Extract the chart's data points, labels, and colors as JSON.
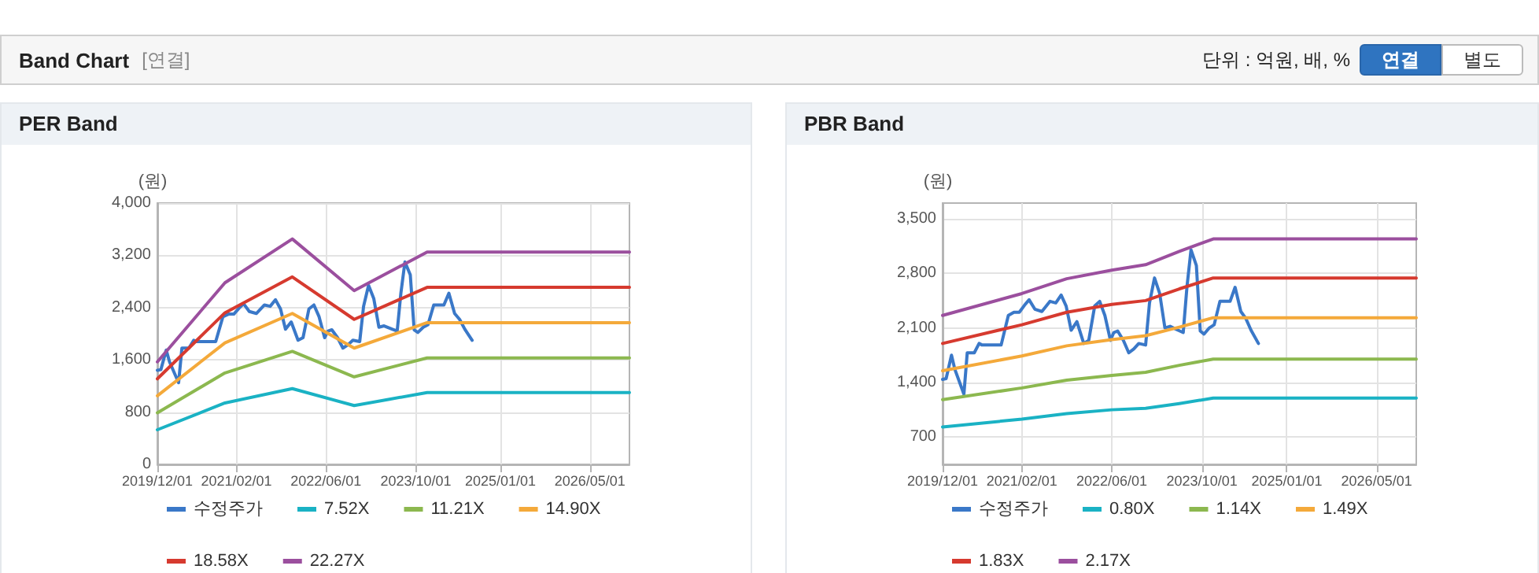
{
  "chart_data": [
    {
      "type": "other",
      "title": "Band Chart",
      "annotations": [
        "[연결]",
        "단위 : 억원, 배, %",
        "연결",
        "별도"
      ]
    },
    {
      "type": "line",
      "title": "PER Band",
      "ylabel": "(원)",
      "xlim": [
        "2019-12-01",
        "2026-12-01"
      ],
      "xticks": [
        {
          "value": "2019-12-01",
          "label": "2019/12/01"
        },
        {
          "value": "2021-02-01",
          "label": "2021/02/01"
        },
        {
          "value": "2022-06-01",
          "label": "2022/06/01"
        },
        {
          "value": "2023-10-01",
          "label": "2023/10/01"
        },
        {
          "value": "2025-01-01",
          "label": "2025/01/01"
        },
        {
          "value": "2026-05-01",
          "label": "2026/05/01"
        }
      ],
      "ylim": [
        0,
        4000
      ],
      "yticks": [
        0,
        {
          "value": 800,
          "label": "800"
        },
        {
          "value": 1600,
          "label": "1,600"
        },
        {
          "value": 2400,
          "label": "2,400"
        },
        {
          "value": 3200,
          "label": "3,200"
        },
        {
          "value": 4000,
          "label": "4,000"
        }
      ],
      "grid": true,
      "legend": "bottom",
      "marker": "none",
      "line_style": "solid",
      "series": [
        {
          "name": "수정주가",
          "color": "#3a78c8",
          "x": [
            "2019-12-01",
            "2019-12-20",
            "2020-01-18",
            "2020-02-05",
            "2020-03-25",
            "2020-04-12",
            "2020-05-20",
            "2020-06-15",
            "2020-07-01",
            "2020-10-12",
            "2020-11-20",
            "2020-12-20",
            "2021-01-18",
            "2021-02-15",
            "2021-03-12",
            "2021-04-12",
            "2021-05-20",
            "2021-07-03",
            "2021-08-03",
            "2021-09-01",
            "2021-09-28",
            "2021-10-25",
            "2021-11-25",
            "2022-01-01",
            "2022-01-28",
            "2022-03-01",
            "2022-03-28",
            "2022-04-25",
            "2022-05-25",
            "2022-06-12",
            "2022-07-03",
            "2022-08-03",
            "2022-09-01",
            "2022-09-28",
            "2022-10-25",
            "2022-12-01",
            "2022-12-22",
            "2023-01-18",
            "2023-02-15",
            "2023-03-15",
            "2023-04-12",
            "2023-05-25",
            "2023-06-22",
            "2023-07-12",
            "2023-08-03",
            "2023-09-01",
            "2023-09-22",
            "2023-10-12",
            "2023-11-10",
            "2023-12-06",
            "2024-01-06",
            "2024-03-01",
            "2024-03-28",
            "2024-04-28",
            "2024-05-25",
            "2024-06-22",
            "2024-08-01"
          ],
          "values": [
            1440,
            1450,
            1750,
            1570,
            1250,
            1780,
            1780,
            1900,
            1880,
            1880,
            2260,
            2300,
            2300,
            2390,
            2460,
            2340,
            2310,
            2440,
            2420,
            2520,
            2380,
            2070,
            2180,
            1900,
            1940,
            2380,
            2440,
            2260,
            1940,
            2040,
            2060,
            1940,
            1780,
            1830,
            1900,
            1880,
            2420,
            2740,
            2540,
            2100,
            2120,
            2070,
            2040,
            2620,
            3100,
            2900,
            2060,
            2020,
            2100,
            2140,
            2440,
            2440,
            2620,
            2310,
            2220,
            2070,
            1900
          ]
        },
        {
          "name": "7.52X",
          "color": "#1ab2c4",
          "x": [
            "2019-12-01",
            "2020-12-01",
            "2021-12-01",
            "2022-11-01",
            "2023-12-01",
            "2026-12-01"
          ],
          "values": [
            530,
            940,
            1160,
            900,
            1100,
            1100
          ]
        },
        {
          "name": "11.21X",
          "color": "#8cb84f",
          "x": [
            "2019-12-01",
            "2020-12-01",
            "2021-12-01",
            "2022-11-01",
            "2023-12-01",
            "2026-12-01"
          ],
          "values": [
            790,
            1400,
            1730,
            1340,
            1630,
            1630
          ]
        },
        {
          "name": "14.90X",
          "color": "#f4a93a",
          "x": [
            "2019-12-01",
            "2020-12-01",
            "2021-12-01",
            "2022-11-01",
            "2023-12-01",
            "2026-12-01"
          ],
          "values": [
            1050,
            1860,
            2310,
            1780,
            2170,
            2170
          ]
        },
        {
          "name": "18.58X",
          "color": "#d63a2f",
          "x": [
            "2019-12-01",
            "2020-12-01",
            "2021-12-01",
            "2022-11-01",
            "2023-12-01",
            "2026-12-01"
          ],
          "values": [
            1310,
            2320,
            2870,
            2220,
            2710,
            2710
          ]
        },
        {
          "name": "22.27X",
          "color": "#9b4f9e",
          "x": [
            "2019-12-01",
            "2020-12-01",
            "2021-12-01",
            "2022-11-01",
            "2023-12-01",
            "2026-12-01"
          ],
          "values": [
            1570,
            2780,
            3450,
            2660,
            3250,
            3250
          ]
        }
      ]
    },
    {
      "type": "line",
      "title": "PBR Band",
      "ylabel": "(원)",
      "xlim": [
        "2019-12-01",
        "2026-12-01"
      ],
      "xticks": [
        {
          "value": "2019-12-01",
          "label": "2019/12/01"
        },
        {
          "value": "2021-02-01",
          "label": "2021/02/01"
        },
        {
          "value": "2022-06-01",
          "label": "2022/06/01"
        },
        {
          "value": "2023-10-01",
          "label": "2023/10/01"
        },
        {
          "value": "2025-01-01",
          "label": "2025/01/01"
        },
        {
          "value": "2026-05-01",
          "label": "2026/05/01"
        }
      ],
      "ylim": [
        350,
        3700
      ],
      "yticks": [
        {
          "value": 700,
          "label": "700"
        },
        {
          "value": 1400,
          "label": "1,400"
        },
        {
          "value": 2100,
          "label": "2,100"
        },
        {
          "value": 2800,
          "label": "2,800"
        },
        {
          "value": 3500,
          "label": "3,500"
        }
      ],
      "grid": true,
      "legend": "bottom",
      "marker": "none",
      "line_style": "solid",
      "series": [
        {
          "name": "수정주가",
          "color": "#3a78c8",
          "x": [
            "2019-12-01",
            "2019-12-20",
            "2020-01-18",
            "2020-02-05",
            "2020-03-25",
            "2020-04-12",
            "2020-05-20",
            "2020-06-15",
            "2020-07-01",
            "2020-10-12",
            "2020-11-20",
            "2020-12-20",
            "2021-01-18",
            "2021-02-15",
            "2021-03-12",
            "2021-04-12",
            "2021-05-20",
            "2021-07-03",
            "2021-08-03",
            "2021-09-01",
            "2021-09-28",
            "2021-10-25",
            "2021-11-25",
            "2022-01-01",
            "2022-01-28",
            "2022-03-01",
            "2022-03-28",
            "2022-04-25",
            "2022-05-25",
            "2022-06-12",
            "2022-07-03",
            "2022-08-03",
            "2022-09-01",
            "2022-09-28",
            "2022-10-25",
            "2022-12-01",
            "2022-12-22",
            "2023-01-18",
            "2023-02-15",
            "2023-03-15",
            "2023-04-12",
            "2023-05-25",
            "2023-06-22",
            "2023-07-12",
            "2023-08-03",
            "2023-09-01",
            "2023-09-22",
            "2023-10-12",
            "2023-11-10",
            "2023-12-06",
            "2024-01-06",
            "2024-03-01",
            "2024-03-28",
            "2024-04-28",
            "2024-05-25",
            "2024-06-22",
            "2024-08-01"
          ],
          "values": [
            1440,
            1450,
            1750,
            1570,
            1250,
            1780,
            1780,
            1900,
            1880,
            1880,
            2260,
            2300,
            2300,
            2390,
            2460,
            2340,
            2310,
            2440,
            2420,
            2520,
            2380,
            2070,
            2180,
            1900,
            1940,
            2380,
            2440,
            2260,
            1940,
            2040,
            2060,
            1940,
            1780,
            1830,
            1900,
            1880,
            2420,
            2740,
            2540,
            2100,
            2120,
            2070,
            2040,
            2620,
            3100,
            2900,
            2060,
            2020,
            2100,
            2140,
            2440,
            2440,
            2620,
            2310,
            2220,
            2070,
            1900
          ]
        },
        {
          "name": "0.80X",
          "color": "#1ab2c4",
          "x": [
            "2019-12-01",
            "2021-02-01",
            "2021-10-01",
            "2022-06-01",
            "2022-12-01",
            "2023-06-01",
            "2023-12-01",
            "2026-12-01"
          ],
          "values": [
            830,
            930,
            1000,
            1050,
            1070,
            1130,
            1200,
            1200
          ]
        },
        {
          "name": "1.14X",
          "color": "#8cb84f",
          "x": [
            "2019-12-01",
            "2021-02-01",
            "2021-10-01",
            "2022-06-01",
            "2022-12-01",
            "2023-06-01",
            "2023-12-01",
            "2026-12-01"
          ],
          "values": [
            1180,
            1330,
            1430,
            1490,
            1530,
            1620,
            1700,
            1700
          ]
        },
        {
          "name": "1.49X",
          "color": "#f4a93a",
          "x": [
            "2019-12-01",
            "2021-02-01",
            "2021-10-01",
            "2022-06-01",
            "2022-12-01",
            "2023-06-01",
            "2023-12-01",
            "2026-12-01"
          ],
          "values": [
            1550,
            1740,
            1870,
            1950,
            2000,
            2110,
            2230,
            2230
          ]
        },
        {
          "name": "1.83X",
          "color": "#d63a2f",
          "x": [
            "2019-12-01",
            "2021-02-01",
            "2021-10-01",
            "2022-06-01",
            "2022-12-01",
            "2023-06-01",
            "2023-12-01",
            "2026-12-01"
          ],
          "values": [
            1900,
            2140,
            2300,
            2400,
            2450,
            2600,
            2740,
            2740
          ]
        },
        {
          "name": "2.17X",
          "color": "#9b4f9e",
          "x": [
            "2019-12-01",
            "2021-02-01",
            "2021-10-01",
            "2022-06-01",
            "2022-12-01",
            "2023-06-01",
            "2023-12-01",
            "2026-12-01"
          ],
          "values": [
            2260,
            2540,
            2730,
            2840,
            2910,
            3080,
            3240,
            3240
          ]
        }
      ]
    }
  ]
}
